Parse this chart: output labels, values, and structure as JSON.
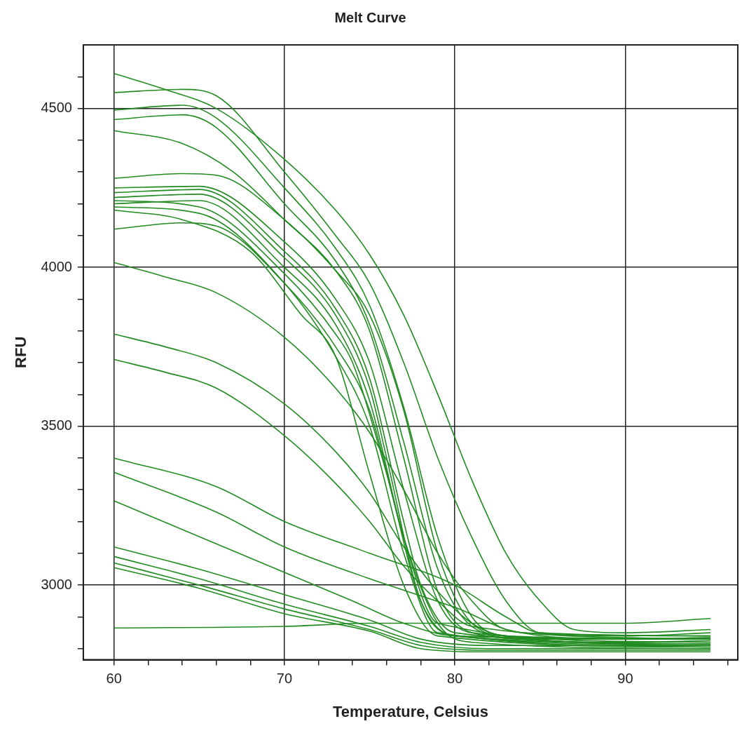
{
  "chart_data": {
    "type": "line",
    "title": "Melt Curve",
    "xlabel": "Temperature, Celsius",
    "ylabel": "RFU",
    "xlim": [
      58.2,
      96.6
    ],
    "ylim": [
      2765,
      4700
    ],
    "xticks": [
      60,
      {
        "value": 62,
        "label": null
      },
      {
        "value": 64,
        "label": null
      },
      {
        "value": 66,
        "label": null
      },
      {
        "value": 68,
        "label": null
      },
      70,
      {
        "value": 72,
        "label": null
      },
      {
        "value": 74,
        "label": null
      },
      {
        "value": 76,
        "label": null
      },
      {
        "value": 78,
        "label": null
      },
      80,
      {
        "value": 82,
        "label": null
      },
      {
        "value": 84,
        "label": null
      },
      {
        "value": 86,
        "label": null
      },
      {
        "value": 88,
        "label": null
      },
      90,
      {
        "value": 92,
        "label": null
      },
      {
        "value": 94,
        "label": null
      },
      {
        "value": 96,
        "label": null
      }
    ],
    "yticks": [
      {
        "value": 2800,
        "label": null
      },
      {
        "value": 2900,
        "label": null
      },
      3000,
      {
        "value": 3100,
        "label": null
      },
      {
        "value": 3200,
        "label": null
      },
      {
        "value": 3300,
        "label": null
      },
      {
        "value": 3400,
        "label": null
      },
      3500,
      {
        "value": 3600,
        "label": null
      },
      {
        "value": 3700,
        "label": null
      },
      {
        "value": 3800,
        "label": null
      },
      {
        "value": 3900,
        "label": null
      },
      4000,
      {
        "value": 4100,
        "label": null
      },
      {
        "value": 4200,
        "label": null
      },
      {
        "value": 4300,
        "label": null
      },
      {
        "value": 4400,
        "label": null
      },
      4500,
      {
        "value": 4600,
        "label": null
      }
    ],
    "grid": true,
    "legend": false,
    "marker": "none",
    "line_style": "solid",
    "series": [
      {
        "color": "#228b22",
        "x": [
          60,
          63,
          66,
          70,
          73,
          75,
          77,
          79,
          81,
          83,
          85,
          87,
          90,
          95
        ],
        "values": [
          4610,
          4560,
          4500,
          4340,
          4180,
          4040,
          3850,
          3600,
          3330,
          3100,
          2950,
          2860,
          2850,
          2860
        ]
      },
      {
        "color": "#228b22",
        "x": [
          60,
          64,
          66,
          70,
          73,
          75,
          77,
          79,
          81,
          83,
          85,
          90,
          95
        ],
        "values": [
          4550,
          4560,
          4540,
          4300,
          4100,
          3950,
          3700,
          3400,
          3150,
          2950,
          2850,
          2840,
          2850
        ]
      },
      {
        "color": "#228b22",
        "x": [
          60,
          64,
          66,
          70,
          73,
          75,
          77,
          79,
          81,
          83,
          90,
          95
        ],
        "values": [
          4495,
          4510,
          4470,
          4250,
          4060,
          3880,
          3560,
          3150,
          2900,
          2840,
          2830,
          2835
        ]
      },
      {
        "color": "#228b22",
        "x": [
          60,
          64,
          66,
          70,
          73,
          75,
          77,
          79,
          81,
          84,
          90,
          95
        ],
        "values": [
          4465,
          4480,
          4440,
          4200,
          4020,
          3820,
          3450,
          3050,
          2870,
          2830,
          2820,
          2825
        ]
      },
      {
        "color": "#228b22",
        "x": [
          60,
          64,
          67,
          70,
          73,
          75,
          77,
          79,
          81,
          85,
          95
        ],
        "values": [
          4430,
          4390,
          4300,
          4150,
          3990,
          3800,
          3400,
          2980,
          2850,
          2830,
          2830
        ]
      },
      {
        "color": "#228b22",
        "x": [
          60,
          64,
          66,
          70,
          73,
          75,
          77,
          79,
          81,
          84,
          95
        ],
        "values": [
          4280,
          4295,
          4290,
          4150,
          3990,
          3850,
          3550,
          3100,
          2880,
          2830,
          2830
        ]
      },
      {
        "color": "#228b22",
        "x": [
          60,
          65,
          70,
          73,
          75,
          77,
          79,
          81,
          95
        ],
        "values": [
          4250,
          4255,
          4080,
          3900,
          3700,
          3300,
          2950,
          2850,
          2820
        ]
      },
      {
        "color": "#228b22",
        "x": [
          60,
          65,
          70,
          73,
          75,
          77,
          78,
          80,
          95
        ],
        "values": [
          4235,
          4245,
          4050,
          3870,
          3650,
          3200,
          3000,
          2850,
          2815
        ]
      },
      {
        "color": "#228b22",
        "x": [
          60,
          65,
          70,
          73,
          75,
          76,
          78,
          80,
          95
        ],
        "values": [
          4220,
          4230,
          4030,
          3850,
          3620,
          3400,
          2950,
          2840,
          2815
        ]
      },
      {
        "color": "#228b22",
        "x": [
          60,
          65,
          70,
          73,
          75,
          77,
          79,
          95
        ],
        "values": [
          4200,
          4210,
          4000,
          3820,
          3580,
          3150,
          2880,
          2810
        ]
      },
      {
        "color": "#228b22",
        "x": [
          60,
          65,
          70,
          73,
          74,
          76,
          78,
          80,
          95
        ],
        "values": [
          4210,
          4190,
          3980,
          3790,
          3700,
          3350,
          2950,
          2840,
          2810
        ]
      },
      {
        "color": "#228b22",
        "x": [
          60,
          65,
          70,
          73,
          75,
          77,
          79,
          95
        ],
        "values": [
          4190,
          4170,
          3950,
          3720,
          3500,
          3100,
          2850,
          2805
        ]
      },
      {
        "color": "#228b22",
        "x": [
          60,
          64,
          68,
          71,
          73,
          75,
          77,
          79,
          95
        ],
        "values": [
          4180,
          4150,
          4050,
          3850,
          3720,
          3350,
          3000,
          2840,
          2805
        ]
      },
      {
        "color": "#228b22",
        "x": [
          60,
          64,
          66,
          70,
          73,
          75,
          77,
          79,
          81,
          95
        ],
        "values": [
          4120,
          4140,
          4130,
          3950,
          3750,
          3550,
          3150,
          2880,
          2820,
          2800
        ]
      },
      {
        "color": "#228b22",
        "x": [
          60,
          63,
          66,
          70,
          73,
          75,
          77,
          79,
          81,
          83,
          90,
          95
        ],
        "values": [
          4015,
          3970,
          3920,
          3780,
          3620,
          3480,
          3300,
          3100,
          2950,
          2860,
          2830,
          2830
        ]
      },
      {
        "color": "#228b22",
        "x": [
          60,
          63,
          66,
          70,
          73,
          75,
          77,
          79,
          81,
          83,
          95
        ],
        "values": [
          3790,
          3750,
          3700,
          3570,
          3420,
          3290,
          3120,
          2980,
          2880,
          2840,
          2830
        ]
      },
      {
        "color": "#228b22",
        "x": [
          60,
          63,
          66,
          70,
          73,
          75,
          77,
          79,
          81,
          95
        ],
        "values": [
          3710,
          3670,
          3620,
          3470,
          3320,
          3200,
          3060,
          2950,
          2870,
          2830
        ]
      },
      {
        "color": "#228b22",
        "x": [
          60,
          66,
          70,
          75,
          80,
          83,
          85,
          95
        ],
        "values": [
          3400,
          3310,
          3200,
          3100,
          3000,
          2900,
          2850,
          2840
        ]
      },
      {
        "color": "#228b22",
        "x": [
          60,
          66,
          70,
          75,
          80,
          84,
          95
        ],
        "values": [
          3355,
          3230,
          3120,
          3020,
          2930,
          2850,
          2840
        ]
      },
      {
        "color": "#228b22",
        "x": [
          60,
          66,
          70,
          74,
          77,
          80,
          95
        ],
        "values": [
          3265,
          3130,
          3040,
          2950,
          2880,
          2840,
          2830
        ]
      },
      {
        "color": "#228b22",
        "x": [
          60,
          65,
          70,
          75,
          78,
          82,
          95
        ],
        "values": [
          3120,
          3050,
          2970,
          2890,
          2830,
          2810,
          2810
        ]
      },
      {
        "color": "#228b22",
        "x": [
          60,
          65,
          70,
          75,
          78,
          82,
          95
        ],
        "values": [
          3090,
          3020,
          2940,
          2870,
          2820,
          2800,
          2800
        ]
      },
      {
        "color": "#228b22",
        "x": [
          60,
          65,
          70,
          75,
          78,
          82,
          95
        ],
        "values": [
          3070,
          3000,
          2925,
          2860,
          2810,
          2795,
          2795
        ]
      },
      {
        "color": "#228b22",
        "x": [
          60,
          65,
          70,
          75,
          78,
          82,
          95
        ],
        "values": [
          3055,
          2990,
          2910,
          2855,
          2800,
          2790,
          2790
        ]
      },
      {
        "color": "#228b22",
        "x": [
          60,
          70,
          75,
          80,
          90,
          95
        ],
        "values": [
          2865,
          2870,
          2880,
          2880,
          2880,
          2895
        ]
      }
    ]
  }
}
